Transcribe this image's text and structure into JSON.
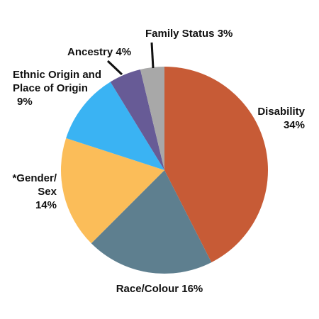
{
  "chart_data": {
    "type": "pie",
    "title": "",
    "legend": "none",
    "slices": [
      {
        "name": "Disability",
        "value": 34,
        "label_lines": [
          "Disability",
          "34%"
        ],
        "color": "#c75b36"
      },
      {
        "name": "Race/Colour",
        "value": 16,
        "label_lines": [
          "Race/Colour 16%"
        ],
        "color": "#5e7f8f"
      },
      {
        "name": "*Gender/ Sex",
        "value": 14,
        "label_lines": [
          "*Gender/",
          "Sex",
          "14%"
        ],
        "color": "#fbbd59"
      },
      {
        "name": "Ethnic Origin and Place of Origin",
        "value": 9,
        "label_lines": [
          "Ethnic Origin and",
          "Place of Origin",
          "9%"
        ],
        "color": "#3ab3f3"
      },
      {
        "name": "Ancestry",
        "value": 4,
        "label_lines": [
          "Ancestry 4%"
        ],
        "color": "#675b96"
      },
      {
        "name": "Family Status",
        "value": 3,
        "label_lines": [
          "Family Status 3%"
        ],
        "color": "#a8a8a8"
      }
    ]
  }
}
